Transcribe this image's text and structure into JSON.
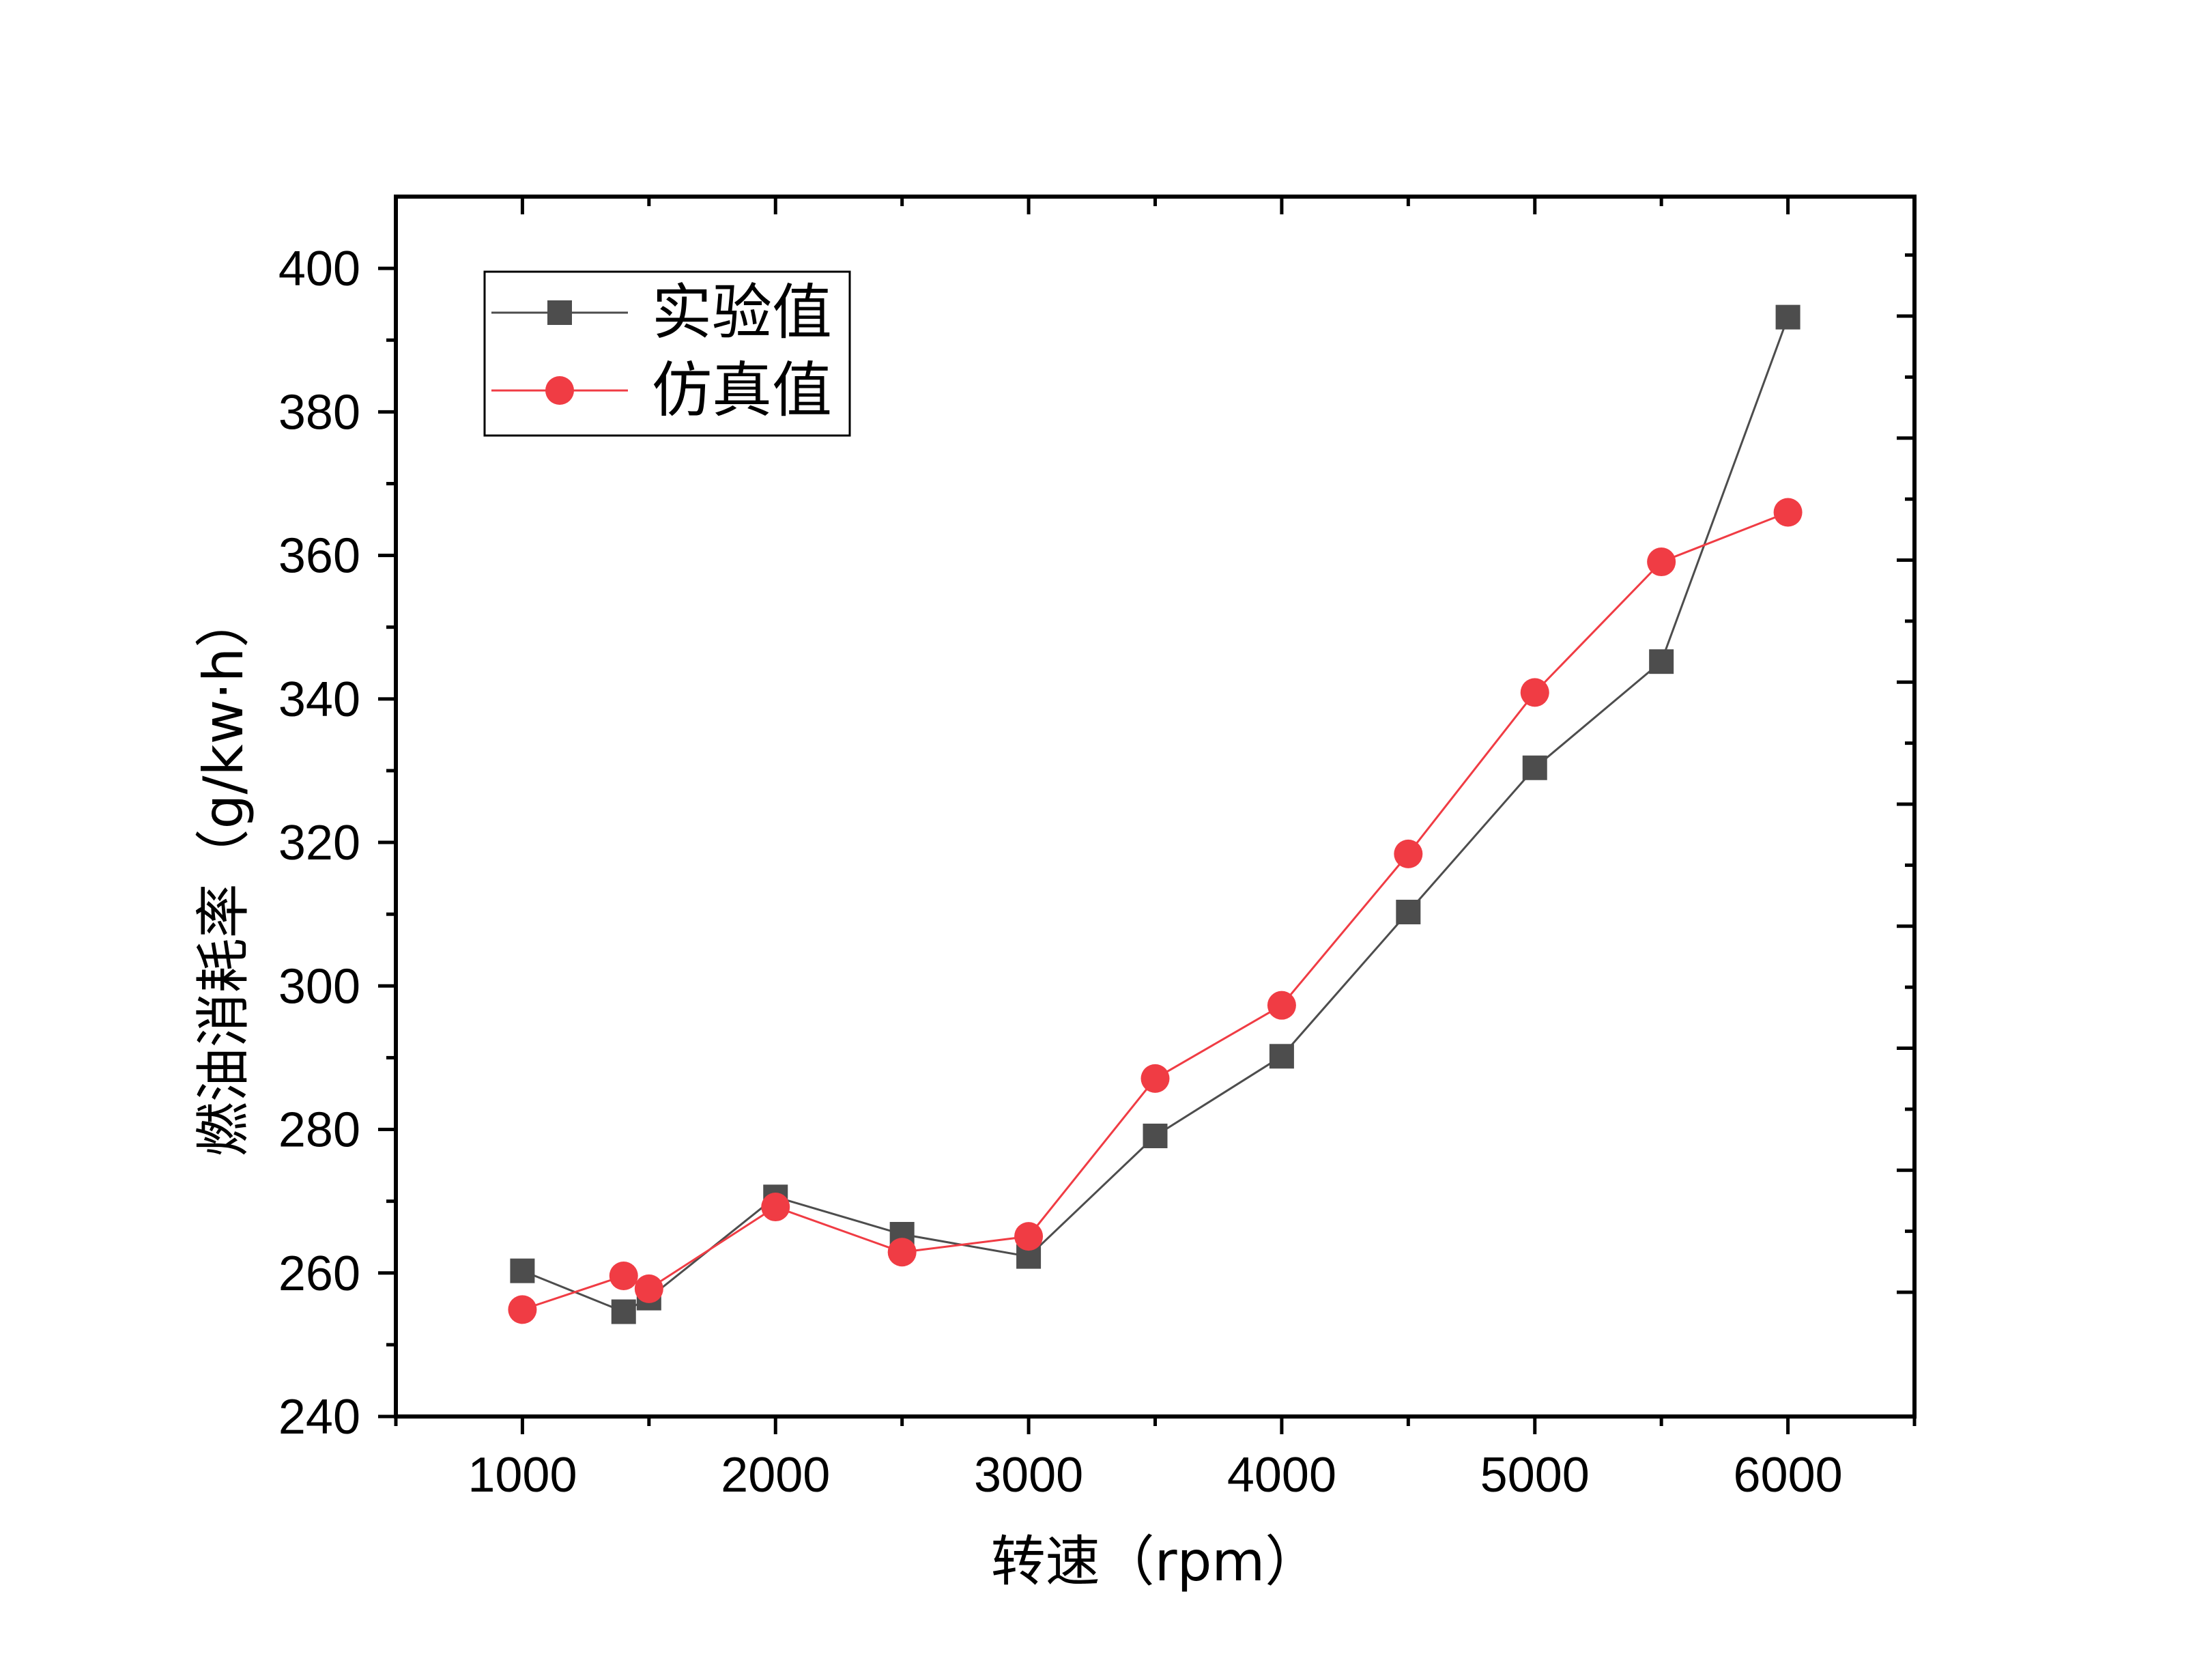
{
  "chart_data": {
    "type": "line",
    "title": "",
    "xlabel": "转速（rpm）",
    "ylabel": "燃油消耗率（g/kw·h）",
    "xlim": [
      500,
      6500
    ],
    "ylim": [
      240,
      410
    ],
    "x_ticks": [
      1000,
      2000,
      3000,
      4000,
      5000,
      6000
    ],
    "y_ticks": [
      240,
      260,
      280,
      300,
      320,
      340,
      360,
      380,
      400
    ],
    "x_tick_labels": [
      "1000",
      "2000",
      "3000",
      "4000",
      "5000",
      "6000"
    ],
    "y_tick_labels": [
      "240",
      "260",
      "280",
      "300",
      "320",
      "340",
      "360",
      "380",
      "400"
    ],
    "grid": false,
    "legend_position": "top-left",
    "series": [
      {
        "name": "实验值",
        "color": "#4d4d4d",
        "marker": "square",
        "x": [
          1000,
          1400,
          1500,
          2000,
          2500,
          3000,
          3500,
          4000,
          4500,
          5000,
          5500,
          6000
        ],
        "values": [
          260.3,
          254.6,
          256.5,
          270.6,
          265.4,
          262.3,
          279.1,
          290.2,
          310.3,
          330.4,
          345.2,
          393.2
        ]
      },
      {
        "name": "仿真值",
        "color": "#f03c44",
        "marker": "circle",
        "x": [
          1000,
          1400,
          1500,
          2000,
          2500,
          3000,
          3500,
          4000,
          4500,
          5000,
          5500,
          6000
        ],
        "values": [
          254.9,
          259.6,
          257.8,
          269.2,
          262.9,
          265.1,
          287.1,
          297.3,
          318.4,
          340.9,
          359.1,
          366.0
        ]
      }
    ]
  }
}
